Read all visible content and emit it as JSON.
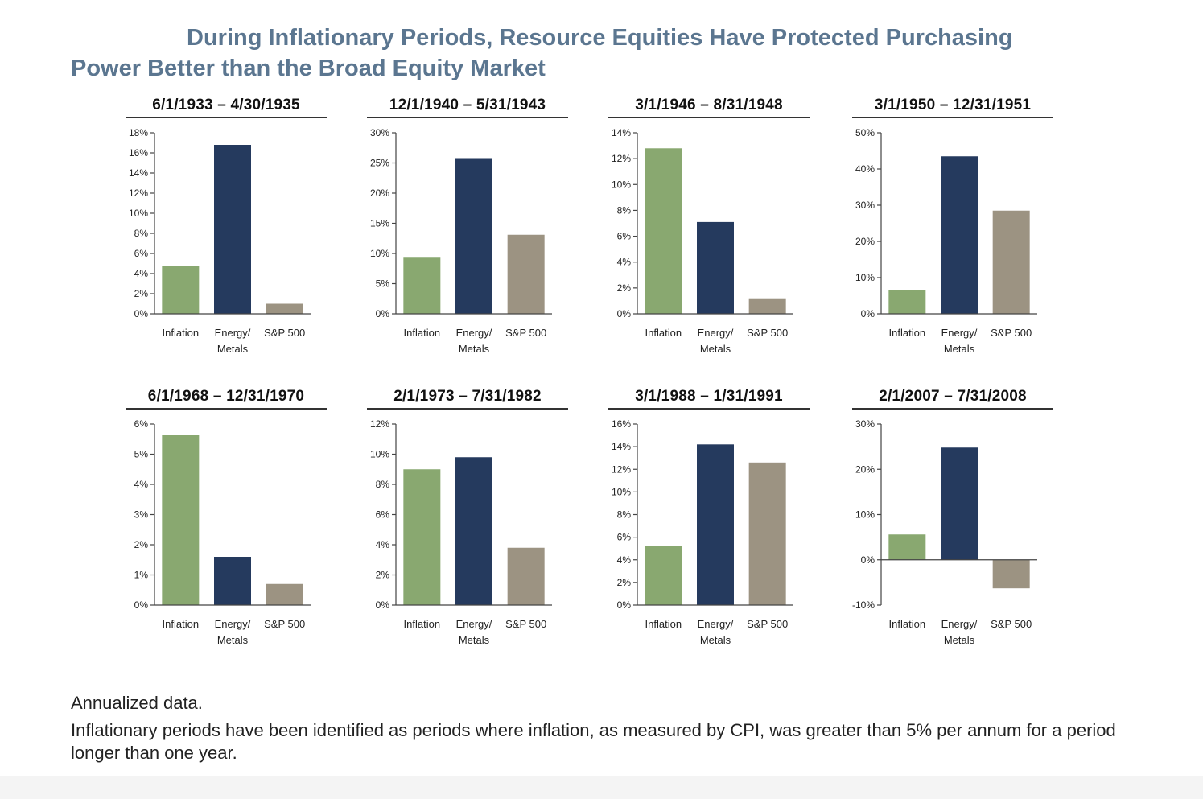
{
  "title": {
    "line1": "During Inflationary Periods, Resource Equities Have Protected Purchasing",
    "line2": "Power Better than the Broad Equity Market"
  },
  "colors": {
    "inflation": "#89a870",
    "energy_metals": "#253a5e",
    "sp500": "#9c9382",
    "title": "#5b7690"
  },
  "categories": [
    "Inflation",
    "Energy/ Metals",
    "S&P 500"
  ],
  "category_lines": [
    [
      "Inflation"
    ],
    [
      "Energy/",
      "Metals"
    ],
    [
      "S&P 500"
    ]
  ],
  "chart_data": [
    {
      "type": "bar",
      "title": "6/1/1933 – 4/30/1935",
      "categories": [
        "Inflation",
        "Energy/ Metals",
        "S&P 500"
      ],
      "values": [
        4.8,
        16.8,
        1.0
      ],
      "ylim": [
        0,
        18
      ],
      "yticks": [
        0,
        2,
        4,
        6,
        8,
        10,
        12,
        14,
        16,
        18
      ],
      "tick_format": "%"
    },
    {
      "type": "bar",
      "title": "12/1/1940 – 5/31/1943",
      "categories": [
        "Inflation",
        "Energy/ Metals",
        "S&P 500"
      ],
      "values": [
        9.3,
        25.8,
        13.1
      ],
      "ylim": [
        0,
        30
      ],
      "yticks": [
        0,
        5,
        10,
        15,
        20,
        25,
        30
      ],
      "tick_format": "%"
    },
    {
      "type": "bar",
      "title": "3/1/1946 – 8/31/1948",
      "categories": [
        "Inflation",
        "Energy/ Metals",
        "S&P 500"
      ],
      "values": [
        12.8,
        7.1,
        1.2
      ],
      "ylim": [
        0,
        14
      ],
      "yticks": [
        0,
        2,
        4,
        6,
        8,
        10,
        12,
        14
      ],
      "tick_format": "%"
    },
    {
      "type": "bar",
      "title": "3/1/1950 – 12/31/1951",
      "categories": [
        "Inflation",
        "Energy/ Metals",
        "S&P 500"
      ],
      "values": [
        6.5,
        43.5,
        28.5
      ],
      "ylim": [
        0,
        50
      ],
      "yticks": [
        0,
        10,
        20,
        30,
        40,
        50
      ],
      "tick_format": "%"
    },
    {
      "type": "bar",
      "title": "6/1/1968 – 12/31/1970",
      "categories": [
        "Inflation",
        "Energy/ Metals",
        "S&P 500"
      ],
      "values": [
        5.65,
        1.6,
        0.7
      ],
      "ylim": [
        0,
        6
      ],
      "yticks": [
        0,
        1,
        2,
        3,
        4,
        5,
        6
      ],
      "tick_format": "%"
    },
    {
      "type": "bar",
      "title": "2/1/1973 – 7/31/1982",
      "categories": [
        "Inflation",
        "Energy/ Metals",
        "S&P 500"
      ],
      "values": [
        9.0,
        9.8,
        3.8
      ],
      "ylim": [
        0,
        12
      ],
      "yticks": [
        0,
        2,
        4,
        6,
        8,
        10,
        12
      ],
      "tick_format": "%"
    },
    {
      "type": "bar",
      "title": "3/1/1988 – 1/31/1991",
      "categories": [
        "Inflation",
        "Energy/ Metals",
        "S&P 500"
      ],
      "values": [
        5.2,
        14.2,
        12.6
      ],
      "ylim": [
        0,
        16
      ],
      "yticks": [
        0,
        2,
        4,
        6,
        8,
        10,
        12,
        14,
        16
      ],
      "tick_format": "%"
    },
    {
      "type": "bar",
      "title": "2/1/2007 – 7/31/2008",
      "categories": [
        "Inflation",
        "Energy/ Metals",
        "S&P 500"
      ],
      "values": [
        5.6,
        24.8,
        -6.3
      ],
      "ylim": [
        -10,
        30
      ],
      "yticks": [
        -10,
        0,
        10,
        20,
        30
      ],
      "tick_format": "%"
    }
  ],
  "footnotes": {
    "line1": "Annualized data.",
    "line2": "Inflationary periods have been identified as periods where inflation, as measured by CPI, was greater than 5% per annum for a period longer than one year."
  }
}
